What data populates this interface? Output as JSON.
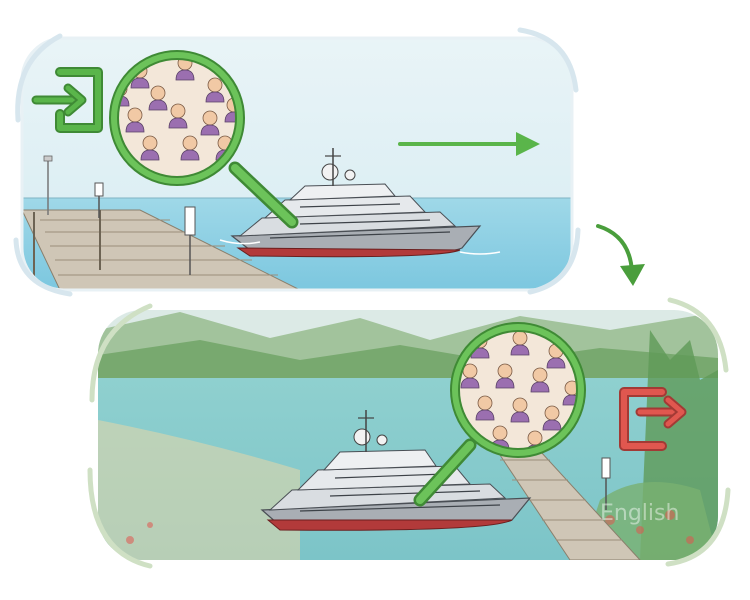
{
  "watermark": {
    "text": "English"
  },
  "panels": [
    {
      "id": "boarding",
      "icon": "enter-icon",
      "accent": "#5ab54a"
    },
    {
      "id": "arriving",
      "icon": "exit-icon",
      "accent": "#e0574f"
    }
  ],
  "colors": {
    "arrow_green": "#5ab54a",
    "lens_green": "#6cc35a",
    "enter_green": "#5ab54a",
    "exit_red": "#e0574f",
    "water_blue": "#8fd3e6",
    "sky_blue": "#dfeff4",
    "hull_red": "#b23a3a"
  }
}
